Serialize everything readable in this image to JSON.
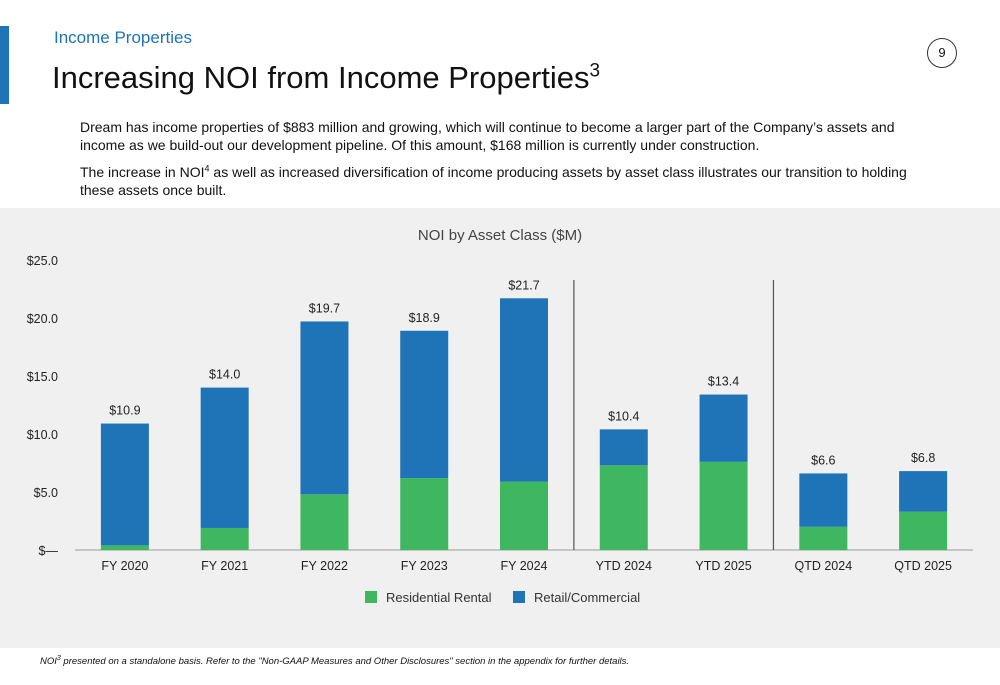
{
  "header": {
    "section_label": "Income Properties",
    "page_number": "9",
    "title": "Increasing NOI from Income Properties",
    "title_superscript": "3"
  },
  "body": {
    "paragraph1": "Dream has income properties of $883 million and growing, which will continue to become a larger part of the Company’s assets and income as we build-out our development pipeline. Of this amount, $168 million is currently under construction.",
    "paragraph2_before": "The increase in NOI",
    "paragraph2_superscript": "4",
    "paragraph2_after": " as well as increased diversification of income producing assets by asset class illustrates our transition to holding these assets once built."
  },
  "chart_data": {
    "type": "bar",
    "stacked": true,
    "title": "NOI by Asset Class ($M)",
    "categories": [
      "FY 2020",
      "FY 2021",
      "FY 2022",
      "FY 2023",
      "FY 2024",
      "YTD 2024",
      "YTD 2025",
      "QTD 2024",
      "QTD 2025"
    ],
    "series": [
      {
        "name": "Residential Rental",
        "color": "#3fb760",
        "values": [
          0.4,
          1.9,
          4.8,
          6.2,
          5.9,
          7.3,
          7.6,
          2.0,
          3.3
        ]
      },
      {
        "name": "Retail/Commercial",
        "color": "#1f73b7",
        "values": [
          10.5,
          12.1,
          14.9,
          12.7,
          15.8,
          3.1,
          5.8,
          4.6,
          3.5
        ]
      }
    ],
    "totals": [
      10.9,
      14.0,
      19.7,
      18.9,
      21.7,
      10.4,
      13.4,
      6.6,
      6.8
    ],
    "total_labels": [
      "$10.9",
      "$14.0",
      "$19.7",
      "$18.9",
      "$21.7",
      "$10.4",
      "$13.4",
      "$6.6",
      "$6.8"
    ],
    "ylim": [
      0,
      25
    ],
    "yticks": [
      0,
      5,
      10,
      15,
      20,
      25
    ],
    "ytick_labels": [
      "$—",
      "$5.0",
      "$10.0",
      "$15.0",
      "$20.0",
      "$25.0"
    ],
    "group_dividers_after": [
      "FY 2024",
      "YTD 2025"
    ],
    "grid": false,
    "legend_position": "bottom-center"
  },
  "footnote": {
    "prefix": "NOI",
    "superscript": "3",
    "text": " presented on a standalone basis. Refer to the \"Non-GAAP Measures and Other Disclosures\" section in the appendix for further details."
  }
}
